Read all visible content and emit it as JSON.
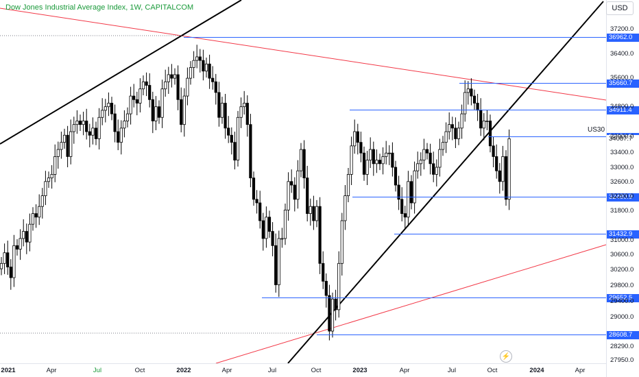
{
  "header": {
    "title": "Dow Jones Industrial Average Index, 1W, CAPITALCOM",
    "currency_button": "USD"
  },
  "symbol_label": "US30",
  "colors": {
    "up_candle": "#ffffff",
    "down_candle": "#000000",
    "title_green": "#1a9a3a",
    "level_blue": "#2962ff",
    "trend_red": "#f23645",
    "trend_black": "#000000"
  },
  "chart_data": {
    "type": "candlestick",
    "timeframe": "1W",
    "ylim": [
      27700,
      37900
    ],
    "price_ticks": [
      "37200.0",
      "36400.0",
      "35600.0",
      "34800.0",
      "33900.0",
      "33400.0",
      "33000.0",
      "32600.0",
      "32200.0",
      "31800.0",
      "31000.0",
      "30600.0",
      "30200.0",
      "29800.0",
      "29400.0",
      "29000.0",
      "28290.0",
      "27950.0"
    ],
    "x_ticks": [
      {
        "label": "2021",
        "major": true,
        "color": "blue"
      },
      {
        "label": "Apr",
        "major": false,
        "color": "default"
      },
      {
        "label": "Jul",
        "major": false,
        "color": "green"
      },
      {
        "label": "Oct",
        "major": false,
        "color": "default"
      },
      {
        "label": "2022",
        "major": true,
        "color": "default"
      },
      {
        "label": "Apr",
        "major": false,
        "color": "default"
      },
      {
        "label": "Jul",
        "major": false,
        "color": "default"
      },
      {
        "label": "Oct",
        "major": false,
        "color": "default"
      },
      {
        "label": "2023",
        "major": true,
        "color": "blue"
      },
      {
        "label": "Apr",
        "major": false,
        "color": "default"
      },
      {
        "label": "Jul",
        "major": false,
        "color": "default"
      },
      {
        "label": "Oct",
        "major": false,
        "color": "default"
      },
      {
        "label": "2024",
        "major": true,
        "color": "default"
      },
      {
        "label": "Apr",
        "major": false,
        "color": "default"
      }
    ],
    "levels": [
      {
        "price": 36962.0,
        "label": "36962.0"
      },
      {
        "price": 35660.7,
        "label": "35660.7"
      },
      {
        "price": 34911.4,
        "label": "34911.4"
      },
      {
        "price": 34174.5,
        "label": "34174.5"
      },
      {
        "price": 32480.9,
        "label": "32480.9"
      },
      {
        "price": 31432.9,
        "label": "31432.9"
      },
      {
        "price": 29652.5,
        "label": "29652.5"
      },
      {
        "price": 28608.7,
        "label": "28608.7"
      }
    ],
    "last_price": {
      "price": 34087.7,
      "label": "34087.7"
    },
    "closes": [
      30600,
      30900,
      30500,
      30200,
      31100,
      31000,
      31300,
      31500,
      31200,
      31700,
      32000,
      31900,
      32200,
      32500,
      32900,
      33000,
      33100,
      33600,
      33800,
      34000,
      34200,
      33600,
      34300,
      34500,
      34600,
      34500,
      34600,
      34300,
      34200,
      34400,
      34100,
      34700,
      34900,
      35000,
      35100,
      34800,
      34300,
      34000,
      34400,
      34600,
      34800,
      35300,
      35200,
      35100,
      35500,
      35700,
      35600,
      35200,
      34600,
      35000,
      34700,
      35500,
      35700,
      35900,
      35800,
      35900,
      35200,
      34500,
      35300,
      35800,
      36100,
      36300,
      36400,
      36300,
      36000,
      36200,
      35800,
      35700,
      35400,
      34700,
      35100,
      34400,
      34200,
      34000,
      33500,
      34700,
      35000,
      35100,
      34500,
      33000,
      32400,
      32300,
      31800,
      31300,
      31900,
      31500,
      31100,
      30000,
      31300,
      31300,
      32100,
      32900,
      32800,
      32400,
      33200,
      33800,
      33000,
      32000,
      32200,
      31800,
      32200,
      30600,
      30100,
      29700,
      28700,
      29600,
      29300,
      30600,
      31800,
      32500,
      33100,
      33900,
      34300,
      34000,
      33700,
      33100,
      33500,
      33800,
      33400,
      33500,
      33400,
      33600,
      33700,
      33700,
      33300,
      32800,
      32400,
      32000,
      31900,
      32900,
      32300,
      33200,
      33400,
      33500,
      33800,
      33700,
      33400,
      33100,
      33300,
      33800,
      34000,
      34300,
      34500,
      34400,
      34100,
      34400,
      34800,
      35400,
      35500,
      35300,
      35100,
      34900,
      34400,
      34600,
      34600,
      33900,
      33600,
      33200,
      32900,
      33600,
      32400,
      34100
    ]
  }
}
